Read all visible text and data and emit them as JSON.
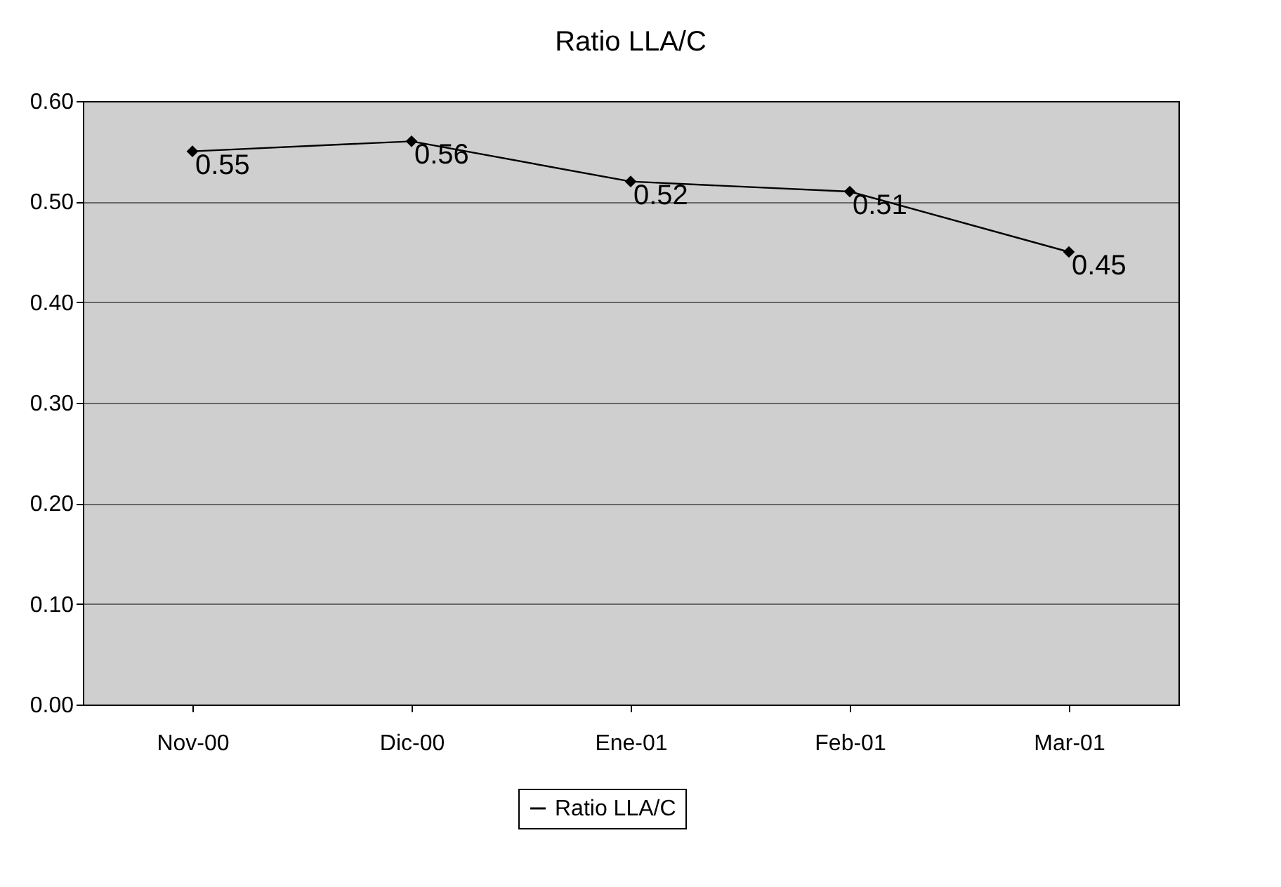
{
  "chart_data": {
    "type": "line",
    "title": "Ratio LLA/C",
    "categories": [
      "Nov-00",
      "Dic-00",
      "Ene-01",
      "Feb-01",
      "Mar-01"
    ],
    "series": [
      {
        "name": "Ratio LLA/C",
        "color": "#000000",
        "values": [
          0.55,
          0.56,
          0.52,
          0.51,
          0.45
        ]
      }
    ],
    "ylim": [
      0,
      0.6
    ],
    "yticks": [
      {
        "value": 0,
        "label": "0.00"
      },
      {
        "value": 0.1,
        "label": "0.10"
      },
      {
        "value": 0.2,
        "label": "0.20"
      },
      {
        "value": 0.3,
        "label": "0.30"
      },
      {
        "value": 0.4,
        "label": "0.40"
      },
      {
        "value": 0.5,
        "label": "0.50"
      },
      {
        "value": 0.6,
        "label": "0.60"
      }
    ],
    "grid": "y",
    "legend": "bottom",
    "marker": "diamond",
    "line_style": "solid",
    "data_labels": true
  }
}
